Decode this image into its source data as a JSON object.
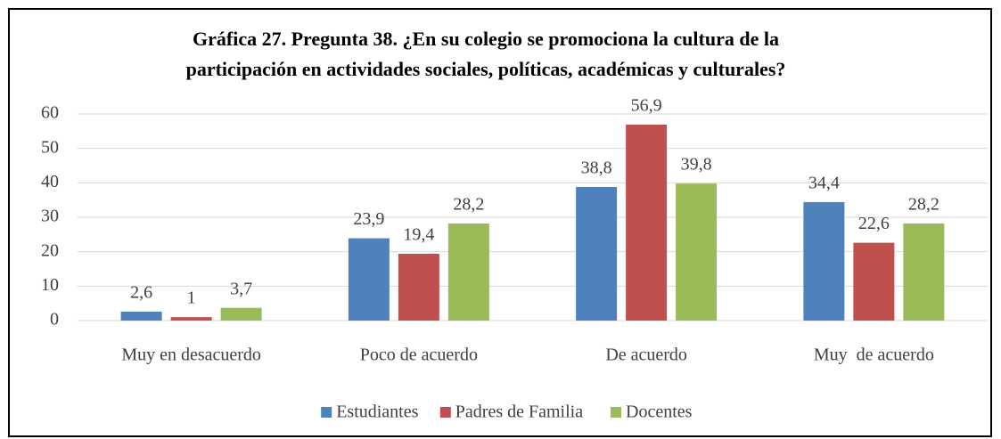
{
  "chart_data": {
    "type": "bar",
    "title": [
      "Gráfica 27. Pregunta 38. ¿En su colegio se promociona la cultura de la",
      "participación en actividades sociales, políticas, académicas y culturales?"
    ],
    "categories": [
      "Muy en desacuerdo",
      "Poco de acuerdo",
      "De acuerdo",
      "Muy  de acuerdo"
    ],
    "series": [
      {
        "name": "Estudiantes",
        "color": "#4f81bd",
        "values": [
          2.6,
          23.9,
          38.8,
          34.4
        ],
        "value_labels": [
          "2,6",
          "23,9",
          "38,8",
          "34,4"
        ]
      },
      {
        "name": "Padres de Familia",
        "color": "#c0504d",
        "values": [
          1,
          19.4,
          56.9,
          22.6
        ],
        "value_labels": [
          "1",
          "19,4",
          "56,9",
          "22,6"
        ]
      },
      {
        "name": "Docentes",
        "color": "#9bbb59",
        "values": [
          3.7,
          28.2,
          39.8,
          28.2
        ],
        "value_labels": [
          "3,7",
          "28,2",
          "39,8",
          "28,2"
        ]
      }
    ],
    "ylim": [
      0,
      60
    ],
    "yticks": [
      0,
      10,
      20,
      30,
      40,
      50,
      60
    ],
    "grid": true,
    "legend": "bottom"
  }
}
